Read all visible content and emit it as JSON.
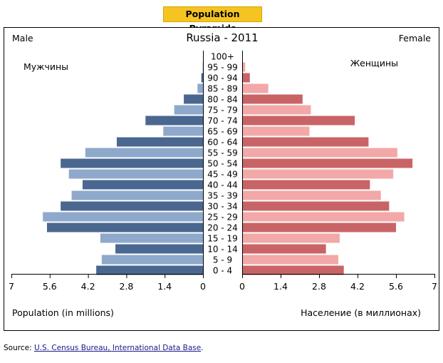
{
  "header": {
    "badge_label": "Population Pyramids"
  },
  "footer": {
    "source_prefix": "Source: ",
    "source_link": "U.S. Census Bureau, International Data Base",
    "source_suffix": "."
  },
  "chart_data": {
    "type": "bar",
    "title": "Russia - 2011",
    "left_label": "Male",
    "right_label": "Female",
    "left_label_ru": "Мужчины",
    "right_label_ru": "Женщины",
    "left_axis_title": "Population (in millions)",
    "right_axis_title": "Население (в миллионах)",
    "xlim": [
      0,
      7
    ],
    "left_ticks": [
      "7",
      "5.6",
      "4.2",
      "2.8",
      "1.4",
      "0"
    ],
    "right_ticks": [
      "0",
      "1.4",
      "2.8",
      "4.2",
      "5.6",
      "7"
    ],
    "categories": [
      "100+",
      "95 - 99",
      "90 - 94",
      "85 - 89",
      "80 - 84",
      "75 - 79",
      "70 - 74",
      "65 - 69",
      "60 - 64",
      "55 - 59",
      "50 - 54",
      "45 - 49",
      "40 - 44",
      "35 - 39",
      "30 - 34",
      "25 - 29",
      "20 - 24",
      "15 - 19",
      "10 - 14",
      "5 - 9",
      "0 - 4"
    ],
    "series": [
      {
        "name": "Male",
        "values": [
          0,
          0.01,
          0.06,
          0.2,
          0.7,
          1.05,
          2.1,
          1.45,
          3.15,
          4.3,
          5.2,
          4.9,
          4.4,
          4.8,
          5.2,
          5.85,
          5.7,
          3.75,
          3.2,
          3.7,
          3.9
        ]
      },
      {
        "name": "Female",
        "values": [
          0.01,
          0.11,
          0.28,
          0.95,
          2.2,
          2.5,
          4.1,
          2.45,
          4.6,
          5.65,
          6.2,
          5.5,
          4.65,
          5.05,
          5.35,
          5.9,
          5.6,
          3.55,
          3.05,
          3.5,
          3.7
        ]
      }
    ],
    "colors": {
      "male_dark": "#4a6790",
      "male_light": "#8ea9cb",
      "female_dark": "#c96466",
      "female_light": "#f2a8a8"
    }
  }
}
